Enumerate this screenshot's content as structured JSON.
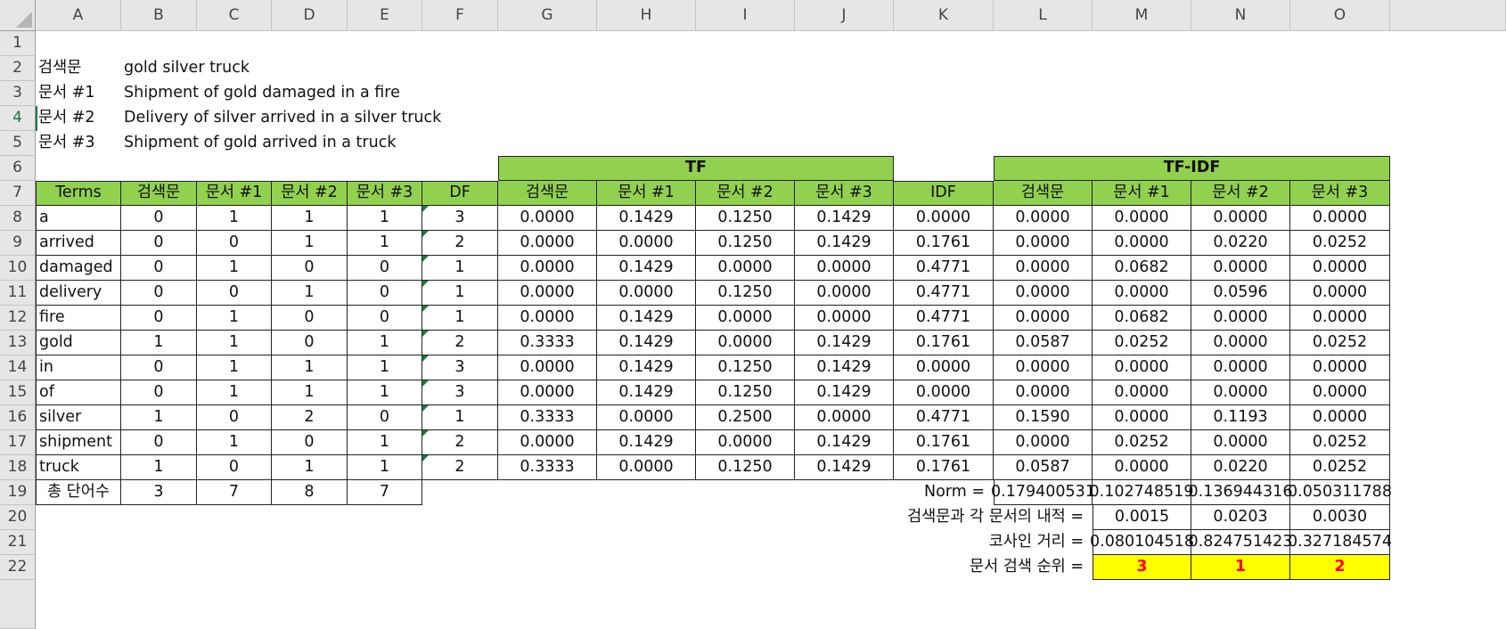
{
  "columns": [
    "A",
    "B",
    "C",
    "D",
    "E",
    "F",
    "G",
    "H",
    "I",
    "J",
    "K",
    "L",
    "M",
    "N",
    "O"
  ],
  "rows": [
    "1",
    "2",
    "3",
    "4",
    "5",
    "6",
    "7",
    "8",
    "9",
    "10",
    "11",
    "12",
    "13",
    "14",
    "15",
    "16",
    "17",
    "18",
    "19",
    "20",
    "21",
    "22"
  ],
  "active_row": "4",
  "query": {
    "label": "검색문",
    "text": "gold silver truck"
  },
  "documents": [
    {
      "label": "문서 #1",
      "text": "Shipment of gold damaged in a fire"
    },
    {
      "label": "문서 #2",
      "text": "Delivery of silver arrived in a silver truck"
    },
    {
      "label": "문서 #3",
      "text": "Shipment of gold arrived in a truck"
    }
  ],
  "group_headers": {
    "tf": "TF",
    "tfidf": "TF-IDF"
  },
  "table_headers": [
    "Terms",
    "검색문",
    "문서 #1",
    "문서 #2",
    "문서 #3",
    "DF",
    "검색문",
    "문서 #1",
    "문서 #2",
    "문서 #3",
    "IDF",
    "검색문",
    "문서 #1",
    "문서 #2",
    "문서 #3"
  ],
  "table_rows": [
    [
      "a",
      "0",
      "1",
      "1",
      "1",
      "3",
      "0.0000",
      "0.1429",
      "0.1250",
      "0.1429",
      "0.0000",
      "0.0000",
      "0.0000",
      "0.0000",
      "0.0000"
    ],
    [
      "arrived",
      "0",
      "0",
      "1",
      "1",
      "2",
      "0.0000",
      "0.0000",
      "0.1250",
      "0.1429",
      "0.1761",
      "0.0000",
      "0.0000",
      "0.0220",
      "0.0252"
    ],
    [
      "damaged",
      "0",
      "1",
      "0",
      "0",
      "1",
      "0.0000",
      "0.1429",
      "0.0000",
      "0.0000",
      "0.4771",
      "0.0000",
      "0.0682",
      "0.0000",
      "0.0000"
    ],
    [
      "delivery",
      "0",
      "0",
      "1",
      "0",
      "1",
      "0.0000",
      "0.0000",
      "0.1250",
      "0.0000",
      "0.4771",
      "0.0000",
      "0.0000",
      "0.0596",
      "0.0000"
    ],
    [
      "fire",
      "0",
      "1",
      "0",
      "0",
      "1",
      "0.0000",
      "0.1429",
      "0.0000",
      "0.0000",
      "0.4771",
      "0.0000",
      "0.0682",
      "0.0000",
      "0.0000"
    ],
    [
      "gold",
      "1",
      "1",
      "0",
      "1",
      "2",
      "0.3333",
      "0.1429",
      "0.0000",
      "0.1429",
      "0.1761",
      "0.0587",
      "0.0252",
      "0.0000",
      "0.0252"
    ],
    [
      "in",
      "0",
      "1",
      "1",
      "1",
      "3",
      "0.0000",
      "0.1429",
      "0.1250",
      "0.1429",
      "0.0000",
      "0.0000",
      "0.0000",
      "0.0000",
      "0.0000"
    ],
    [
      "of",
      "0",
      "1",
      "1",
      "1",
      "3",
      "0.0000",
      "0.1429",
      "0.1250",
      "0.1429",
      "0.0000",
      "0.0000",
      "0.0000",
      "0.0000",
      "0.0000"
    ],
    [
      "silver",
      "1",
      "0",
      "2",
      "0",
      "1",
      "0.3333",
      "0.0000",
      "0.2500",
      "0.0000",
      "0.4771",
      "0.1590",
      "0.0000",
      "0.1193",
      "0.0000"
    ],
    [
      "shipment",
      "0",
      "1",
      "0",
      "1",
      "2",
      "0.0000",
      "0.1429",
      "0.0000",
      "0.1429",
      "0.1761",
      "0.0000",
      "0.0252",
      "0.0000",
      "0.0252"
    ],
    [
      "truck",
      "1",
      "0",
      "1",
      "1",
      "2",
      "0.3333",
      "0.0000",
      "0.1250",
      "0.1429",
      "0.1761",
      "0.0587",
      "0.0000",
      "0.0220",
      "0.0252"
    ]
  ],
  "total_row": {
    "label": "총 단어수",
    "values": [
      "3",
      "7",
      "8",
      "7"
    ]
  },
  "norm": {
    "label": "Norm =",
    "values": [
      "0.179400531",
      "0.102748519",
      "0.136944316",
      "0.050311788"
    ]
  },
  "dot_product": {
    "label": "검색문과 각 문서의 내적 =",
    "values": [
      "0.0015",
      "0.0203",
      "0.0030"
    ]
  },
  "cosine": {
    "label": "코사인 거리 =",
    "values": [
      "0.080104518",
      "0.824751423",
      "0.327184574"
    ]
  },
  "rank": {
    "label": "문서 검색 순위 =",
    "values": [
      "3",
      "1",
      "2"
    ]
  },
  "colors": {
    "header_green": "#92d050",
    "rank_yellow": "#ffff00",
    "rank_text": "#ff0000",
    "selection_green": "#217346"
  }
}
